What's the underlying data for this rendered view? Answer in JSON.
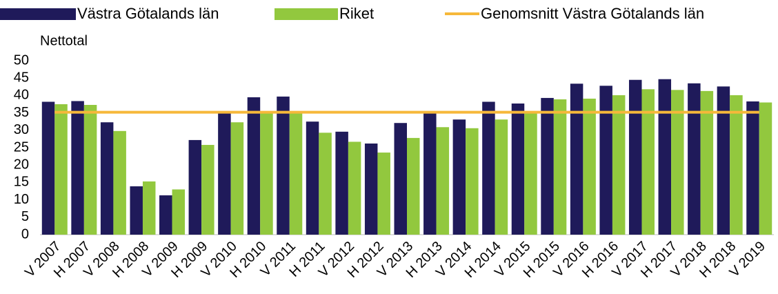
{
  "chart_data": {
    "type": "bar",
    "y_label": "Nettotal",
    "categories": [
      "V 2007",
      "H 2007",
      "V 2008",
      "H 2008",
      "V 2009",
      "H 2009",
      "V 2010",
      "H 2010",
      "V 2011",
      "H 2011",
      "V 2012",
      "H 2012",
      "V 2013",
      "H 2013",
      "V 2014",
      "H 2014",
      "V 2015",
      "H 2015",
      "V 2016",
      "H 2016",
      "V 2017",
      "H 2017",
      "V 2018",
      "H 2018",
      "V 2019"
    ],
    "series": [
      {
        "name": "Västra Götalands län",
        "color": "#1f1a5a",
        "type": "bar",
        "values": [
          38.2,
          38.4,
          32.3,
          13.9,
          11.3,
          27.2,
          35.1,
          39.5,
          39.7,
          32.5,
          29.6,
          26.2,
          32.1,
          35.5,
          33.1,
          38.2,
          37.7,
          39.3,
          43.4,
          42.8,
          44.5,
          44.7,
          43.5,
          42.6,
          38.3
        ]
      },
      {
        "name": "Riket",
        "color": "#92c83e",
        "type": "bar",
        "values": [
          37.5,
          37.3,
          29.8,
          15.3,
          13.0,
          25.8,
          32.3,
          35.3,
          35.5,
          29.3,
          26.7,
          23.6,
          27.8,
          30.9,
          30.6,
          33.1,
          35.2,
          38.9,
          39.1,
          40.1,
          41.8,
          41.6,
          41.3,
          40.1,
          38.0
        ]
      },
      {
        "name": "Genomsnitt Västra Götalands län",
        "color": "#f6b83a",
        "type": "line",
        "values": [
          35.2,
          35.2,
          35.2,
          35.2,
          35.2,
          35.2,
          35.2,
          35.2,
          35.2,
          35.2,
          35.2,
          35.2,
          35.2,
          35.2,
          35.2,
          35.2,
          35.2,
          35.2,
          35.2,
          35.2,
          35.2,
          35.2,
          35.2,
          35.2,
          35.2
        ]
      }
    ],
    "ylim": [
      0,
      50
    ],
    "yticks": [
      0,
      5,
      10,
      15,
      20,
      25,
      30,
      35,
      40,
      45,
      50
    ],
    "grid": false
  }
}
